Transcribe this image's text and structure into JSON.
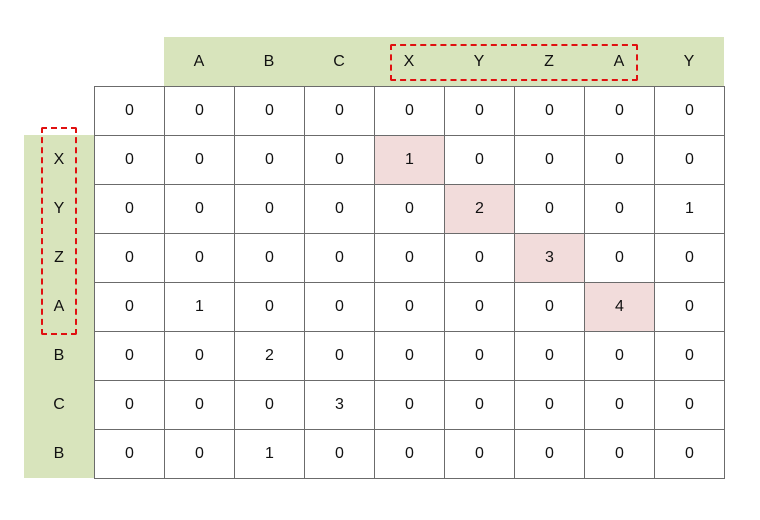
{
  "column_headers": [
    "A",
    "B",
    "C",
    "X",
    "Y",
    "Z",
    "A",
    "Y"
  ],
  "row_headers": [
    "X",
    "Y",
    "Z",
    "A",
    "B",
    "C",
    "B"
  ],
  "matrix": [
    [
      0,
      0,
      0,
      0,
      0,
      0,
      0,
      0,
      0
    ],
    [
      0,
      0,
      0,
      0,
      1,
      0,
      0,
      0,
      0
    ],
    [
      0,
      0,
      0,
      0,
      0,
      2,
      0,
      0,
      1
    ],
    [
      0,
      0,
      0,
      0,
      0,
      0,
      3,
      0,
      0
    ],
    [
      0,
      1,
      0,
      0,
      0,
      0,
      0,
      4,
      0
    ],
    [
      0,
      0,
      2,
      0,
      0,
      0,
      0,
      0,
      0
    ],
    [
      0,
      0,
      0,
      3,
      0,
      0,
      0,
      0,
      0
    ],
    [
      0,
      0,
      1,
      0,
      0,
      0,
      0,
      0,
      0
    ]
  ],
  "highlighted_cells": [
    [
      1,
      4
    ],
    [
      2,
      5
    ],
    [
      3,
      6
    ],
    [
      4,
      7
    ]
  ],
  "dashed_groups": {
    "column_headers": [
      3,
      4,
      5,
      6
    ],
    "row_headers": [
      0,
      1,
      2,
      3
    ]
  },
  "colors": {
    "header_background": "#d8e4bc",
    "highlight_cell": "#f2dcdb",
    "grid_border": "#6b6b6b",
    "dashed_outline": "#e01010"
  }
}
